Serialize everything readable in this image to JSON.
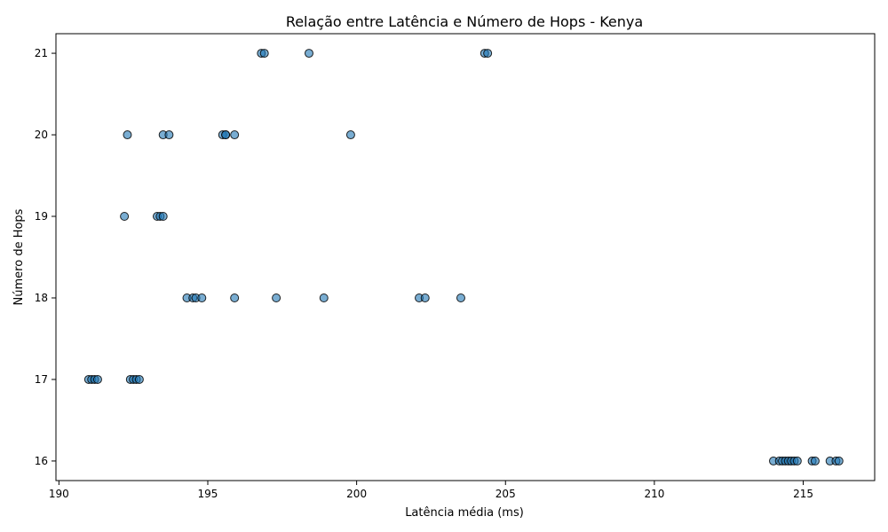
{
  "chart_data": {
    "type": "scatter",
    "title": "Relação entre Latência e Número de Hops - Kenya",
    "xlabel": "Latência média (ms)",
    "ylabel": "Número de Hops",
    "xlim": [
      189.9,
      217.4
    ],
    "ylim": [
      15.76,
      21.24
    ],
    "xticks": [
      190,
      195,
      200,
      205,
      210,
      215
    ],
    "yticks": [
      16,
      17,
      18,
      19,
      20,
      21
    ],
    "grid": false,
    "marker_color": "#1f77b4",
    "edge_color": "#000000",
    "series": [
      {
        "points": [
          [
            196.8,
            21
          ],
          [
            196.9,
            21
          ],
          [
            198.4,
            21
          ],
          [
            204.3,
            21
          ],
          [
            204.4,
            21
          ],
          [
            192.3,
            20
          ],
          [
            193.5,
            20
          ],
          [
            193.7,
            20
          ],
          [
            195.5,
            20
          ],
          [
            195.6,
            20
          ],
          [
            195.6,
            20
          ],
          [
            195.9,
            20
          ],
          [
            199.8,
            20
          ],
          [
            192.2,
            19
          ],
          [
            193.3,
            19
          ],
          [
            193.4,
            19
          ],
          [
            193.5,
            19
          ],
          [
            194.3,
            18
          ],
          [
            194.5,
            18
          ],
          [
            194.6,
            18
          ],
          [
            194.8,
            18
          ],
          [
            195.9,
            18
          ],
          [
            197.3,
            18
          ],
          [
            198.9,
            18
          ],
          [
            202.1,
            18
          ],
          [
            202.3,
            18
          ],
          [
            203.5,
            18
          ],
          [
            191.0,
            17
          ],
          [
            191.1,
            17
          ],
          [
            191.2,
            17
          ],
          [
            191.3,
            17
          ],
          [
            192.4,
            17
          ],
          [
            192.5,
            17
          ],
          [
            192.6,
            17
          ],
          [
            192.7,
            17
          ],
          [
            214.0,
            16
          ],
          [
            214.2,
            16
          ],
          [
            214.3,
            16
          ],
          [
            214.4,
            16
          ],
          [
            214.5,
            16
          ],
          [
            214.6,
            16
          ],
          [
            214.7,
            16
          ],
          [
            214.8,
            16
          ],
          [
            215.3,
            16
          ],
          [
            215.4,
            16
          ],
          [
            215.9,
            16
          ],
          [
            216.1,
            16
          ],
          [
            216.2,
            16
          ]
        ]
      }
    ]
  }
}
